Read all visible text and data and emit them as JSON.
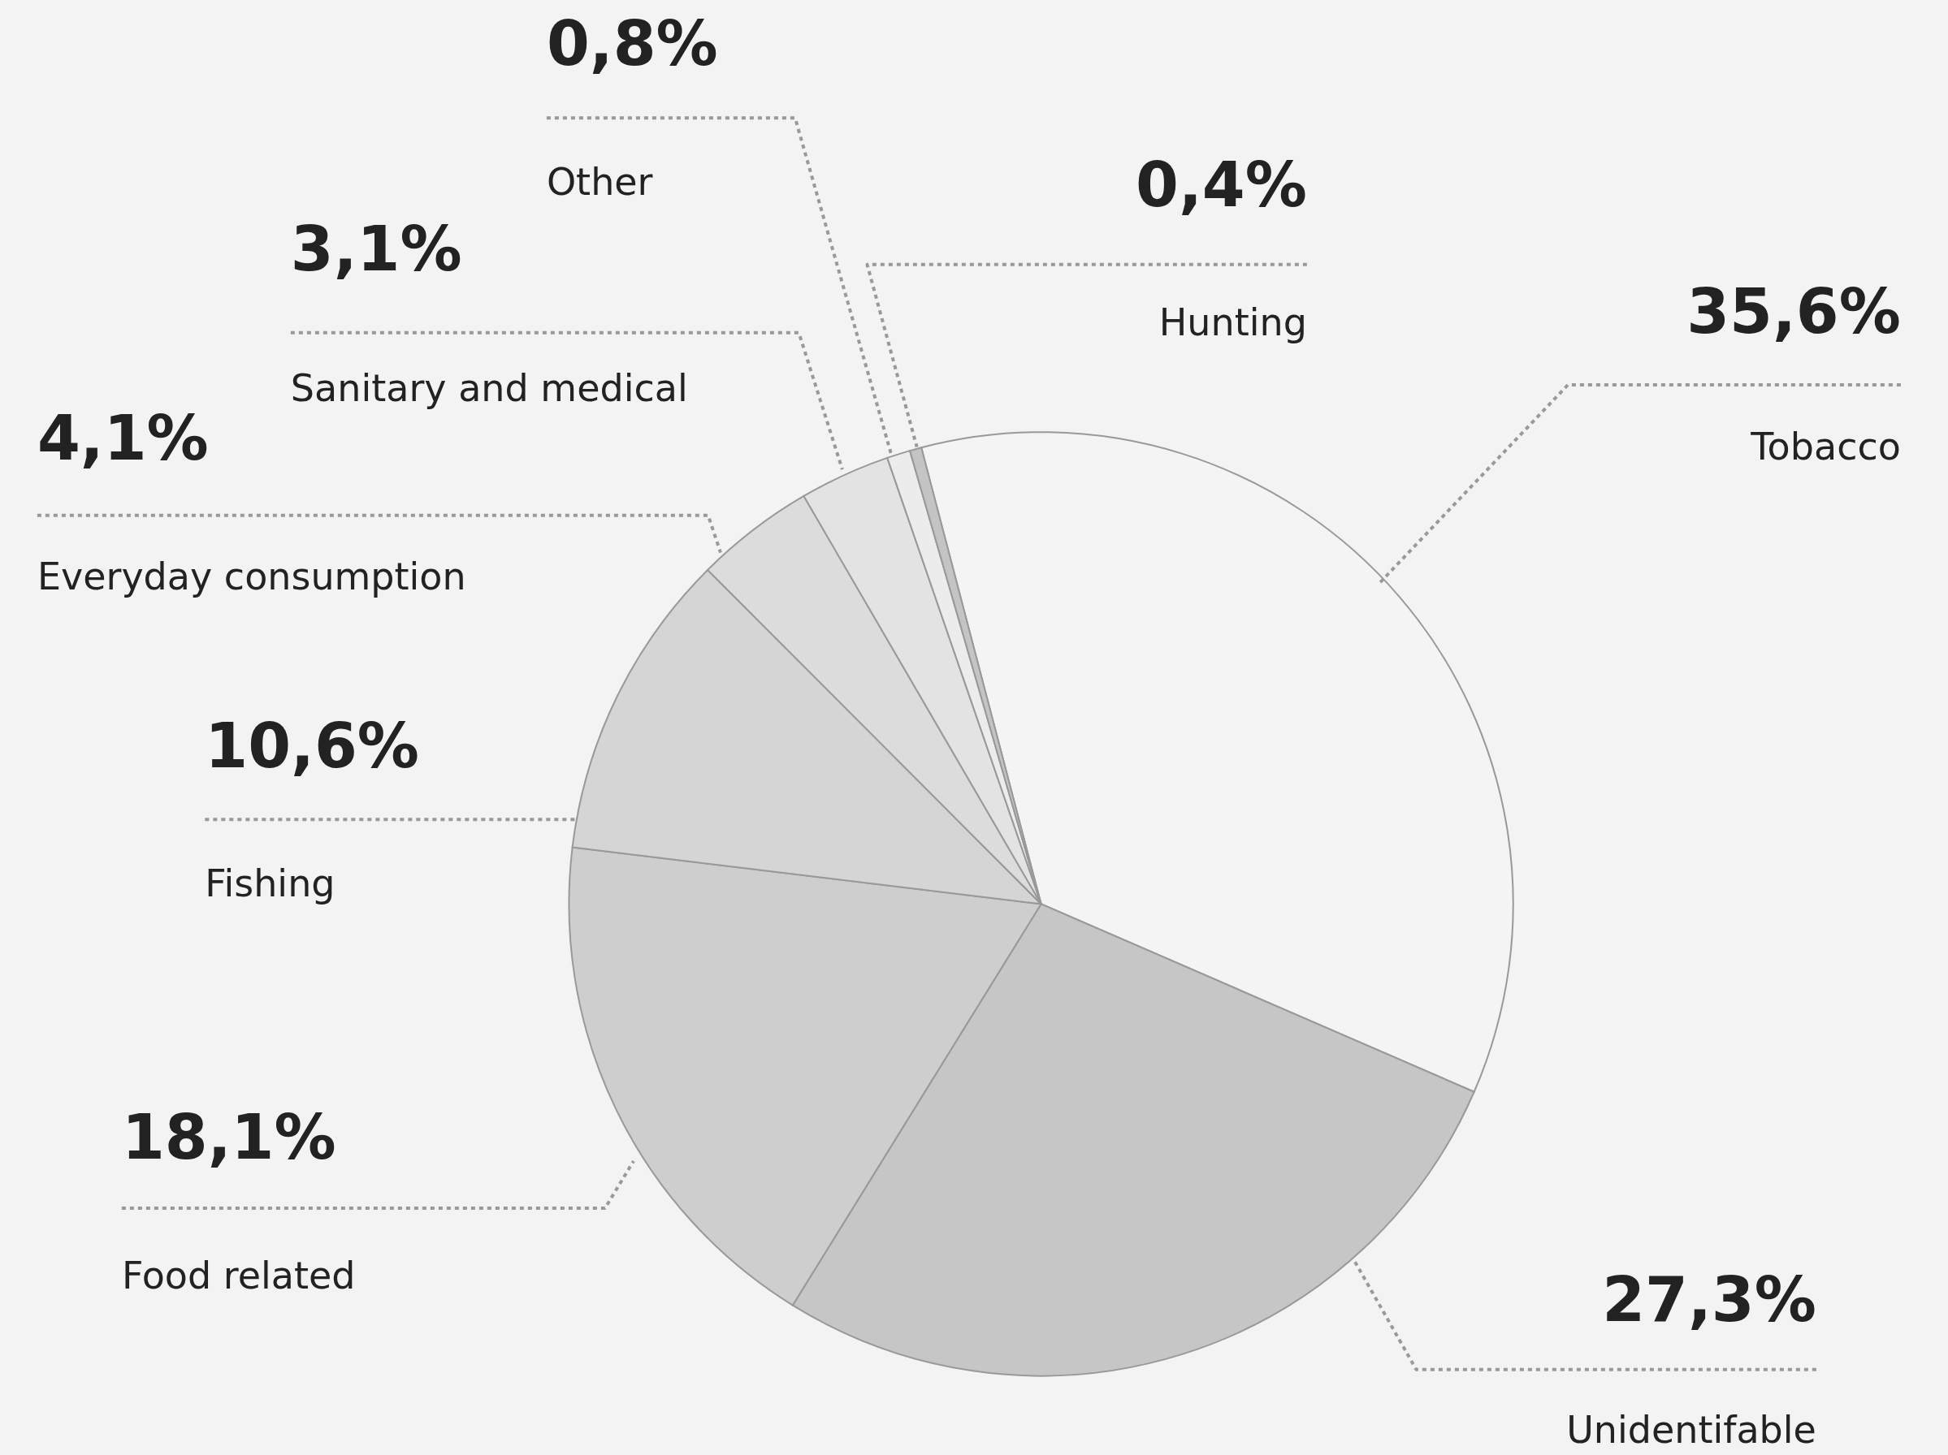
{
  "chart_data": {
    "type": "pie",
    "categories": [
      "Tobacco",
      "Unidentifable",
      "Food related",
      "Fishing",
      "Everyday consumption",
      "Sanitary and medical",
      "Other",
      "Hunting"
    ],
    "values": [
      35.6,
      27.3,
      18.1,
      10.6,
      4.1,
      3.1,
      0.8,
      0.4
    ],
    "value_labels": [
      "35,6%",
      "27,3%",
      "18,1%",
      "10,6%",
      "4,1%",
      "3,1%",
      "0,8%",
      "0,4%"
    ],
    "colors": [
      "#f4f4f4",
      "#c6c6c6",
      "#cecece",
      "#d5d5d5",
      "#dcdcdc",
      "#e3e3e3",
      "#ececec",
      "#c4c4c4"
    ]
  }
}
